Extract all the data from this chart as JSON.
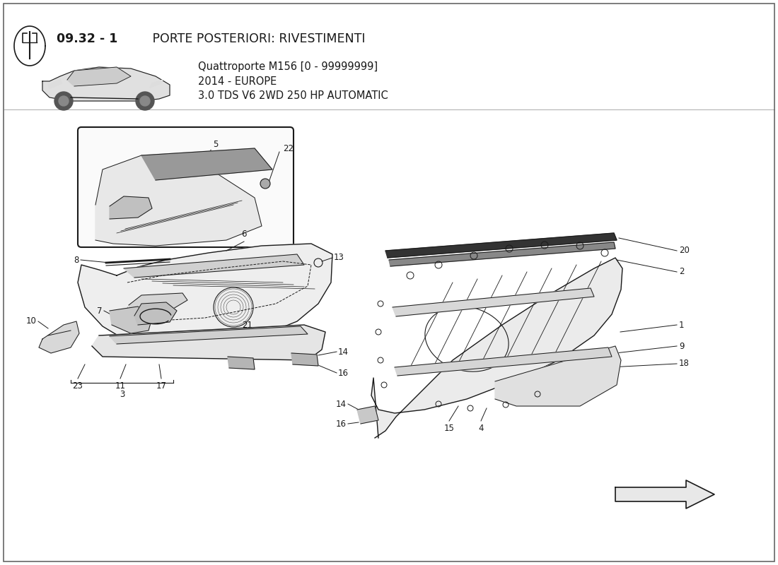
{
  "title_bold": "09.32 - 1",
  "title_normal": " PORTE POSTERIORI: RIVESTIMENTI",
  "subtitle_line1": "Quattroporte M156 [0 - 99999999]",
  "subtitle_line2": "2014 - EUROPE",
  "subtitle_line3": "3.0 TDS V6 2WD 250 HP AUTOMATIC",
  "bg_color": "#ffffff",
  "line_color": "#1a1a1a",
  "fill_light": "#f0f0f0",
  "fill_mid": "#d8d8d8",
  "fill_dark": "#888888",
  "label_fontsize": 8.5,
  "title_fontsize": 12.5,
  "subtitle_fontsize": 10.5
}
